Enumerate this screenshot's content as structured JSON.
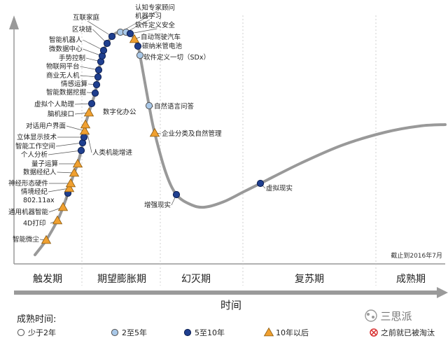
{
  "chart_data": {
    "type": "line",
    "title": "",
    "xlabel": "时间",
    "ylabel": "",
    "note": "截止到2016年7月",
    "phases": [
      "触发期",
      "期望膨胀期",
      "幻灭期",
      "复苏期",
      "成熟期"
    ],
    "legend": {
      "title": "成熟时间:",
      "items": [
        {
          "key": "lt2",
          "label": "少于2年",
          "color": "#ffffff"
        },
        {
          "key": "2to5",
          "label": "2至5年",
          "color": "#a9c8e8"
        },
        {
          "key": "5to10",
          "label": "5至10年",
          "color": "#1f3f8f"
        },
        {
          "key": "gt10",
          "label": "10年以后",
          "color": "#f0a030"
        },
        {
          "key": "obsolete",
          "label": "之前就已被淘汰",
          "color": "#d83030"
        }
      ]
    },
    "technologies": [
      {
        "name": "智能微尘",
        "t": 1.8,
        "class": "gt10"
      },
      {
        "name": "4D打印",
        "t": 3.0,
        "class": "gt10"
      },
      {
        "name": "通用机器智能",
        "t": 3.6,
        "class": "gt10"
      },
      {
        "name": "802.11ax",
        "t": 4.3,
        "class": "5to10"
      },
      {
        "name": "情境经纪",
        "t": 4.6,
        "class": "gt10"
      },
      {
        "name": "神经形态硬件",
        "t": 4.9,
        "class": "gt10"
      },
      {
        "name": "数据经纪人",
        "t": 5.6,
        "class": "gt10"
      },
      {
        "name": "量子运算",
        "t": 6.2,
        "class": "gt10"
      },
      {
        "name": "个人分析",
        "t": 6.8,
        "class": "5to10"
      },
      {
        "name": "智能工作空间",
        "t": 7.3,
        "class": "5to10"
      },
      {
        "name": "立体显示技术",
        "t": 7.6,
        "class": "5to10"
      },
      {
        "name": "对话用户界面",
        "t": 8.0,
        "class": "gt10"
      },
      {
        "name": "人类机能增进",
        "t": 8.4,
        "class": "gt10"
      },
      {
        "name": "脑机接口",
        "t": 9.2,
        "class": "gt10"
      },
      {
        "name": "虚拟个人助理",
        "t": 9.8,
        "class": "5to10"
      },
      {
        "name": "智能数据挖掘",
        "t": 10.7,
        "class": "5to10"
      },
      {
        "name": "情感运算",
        "t": 11.0,
        "class": "5to10"
      },
      {
        "name": "商业无人机",
        "t": 11.3,
        "class": "5to10"
      },
      {
        "name": "物联网平台",
        "t": 11.6,
        "class": "5to10"
      },
      {
        "name": "手势控制",
        "t": 12.2,
        "class": "5to10"
      },
      {
        "name": "微数据中心",
        "t": 12.5,
        "class": "5to10"
      },
      {
        "name": "智能机器人",
        "t": 12.8,
        "class": "5to10"
      },
      {
        "name": "区块链",
        "t": 13.6,
        "class": "5to10"
      },
      {
        "name": "互联家庭",
        "t": 14.5,
        "class": "5to10"
      },
      {
        "name": "认知专家顾问",
        "t": 15.4,
        "class": "2to5"
      },
      {
        "name": "机器学习",
        "t": 16.2,
        "class": "2to5"
      },
      {
        "name": "软件定义安全",
        "t": 16.8,
        "class": "5to10"
      },
      {
        "name": "自动驾驶汽车",
        "t": 17.4,
        "class": "gt10"
      },
      {
        "name": "碳纳米管电池",
        "t": 17.9,
        "class": "5to10"
      },
      {
        "name": "软件定义一切（SDx）",
        "t": 18.5,
        "class": "2to5"
      },
      {
        "name": "自然语言问答",
        "t": 20.8,
        "class": "2to5"
      },
      {
        "name": "企业分类及自然管理",
        "t": 22.5,
        "class": "gt10"
      },
      {
        "name": "增强现实",
        "t": 26.5,
        "class": "5to10"
      },
      {
        "name": "虚拟现实",
        "t": 45.0,
        "class": "5to10"
      }
    ],
    "annotation": "数字化办公"
  },
  "brand": {
    "text": "三思派"
  }
}
